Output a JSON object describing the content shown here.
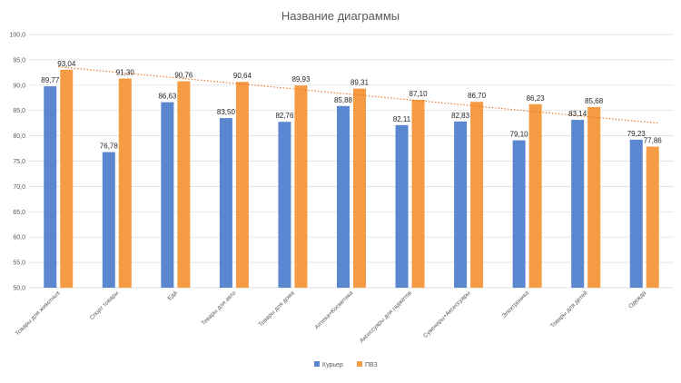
{
  "chart_data": {
    "type": "bar",
    "title": "Название диаграммы",
    "categories": [
      "Товары для животных",
      "Спорт товары",
      "Еда",
      "Товары для авто",
      "Товары для дома",
      "Аптека+Косметика",
      "Аксессуары для гаджетов",
      "Сувениры+Аксессуары",
      "Электроника",
      "Товары для детей",
      "Одежда"
    ],
    "series": [
      {
        "name": "Курьер",
        "color": "#5B87D0",
        "values": [
          89.77,
          76.78,
          86.63,
          83.5,
          82.76,
          85.88,
          82.11,
          82.83,
          79.1,
          83.14,
          79.23
        ],
        "labels": [
          "89,77",
          "76,78",
          "86,63",
          "83,50",
          "82,76",
          "85,88",
          "82,11",
          "82,83",
          "79,10",
          "83,14",
          "79,23"
        ]
      },
      {
        "name": "ПВЗ",
        "color": "#F59B43",
        "values": [
          93.04,
          91.3,
          90.76,
          90.64,
          89.93,
          89.31,
          87.1,
          86.7,
          86.23,
          85.68,
          77.86
        ],
        "labels": [
          "93,04",
          "91,30",
          "90,76",
          "90,64",
          "89,93",
          "89,31",
          "87,10",
          "86,70",
          "86,23",
          "85,68",
          "77,86"
        ]
      }
    ],
    "trendline": {
      "series": "ПВЗ",
      "type": "linear",
      "style": "dotted",
      "color": "#ED7D31"
    },
    "ylim": [
      50,
      100
    ],
    "yticks": [
      50,
      55,
      60,
      65,
      70,
      75,
      80,
      85,
      90,
      95,
      100
    ],
    "ytick_labels": [
      "50,0",
      "55,0",
      "60,0",
      "65,0",
      "70,0",
      "75,0",
      "80,0",
      "85,0",
      "90,0",
      "95,0",
      "100,0"
    ],
    "grid": true,
    "legend_position": "bottom"
  }
}
